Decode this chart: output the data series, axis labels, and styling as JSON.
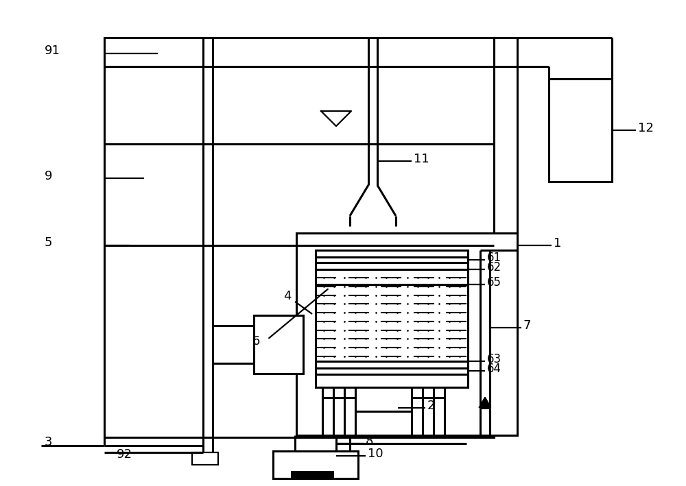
{
  "bg": "#ffffff",
  "lc": "#000000",
  "lw": 2.2,
  "lwt": 1.6,
  "fig_w": 10.0,
  "fig_h": 7.09,
  "dpi": 100
}
